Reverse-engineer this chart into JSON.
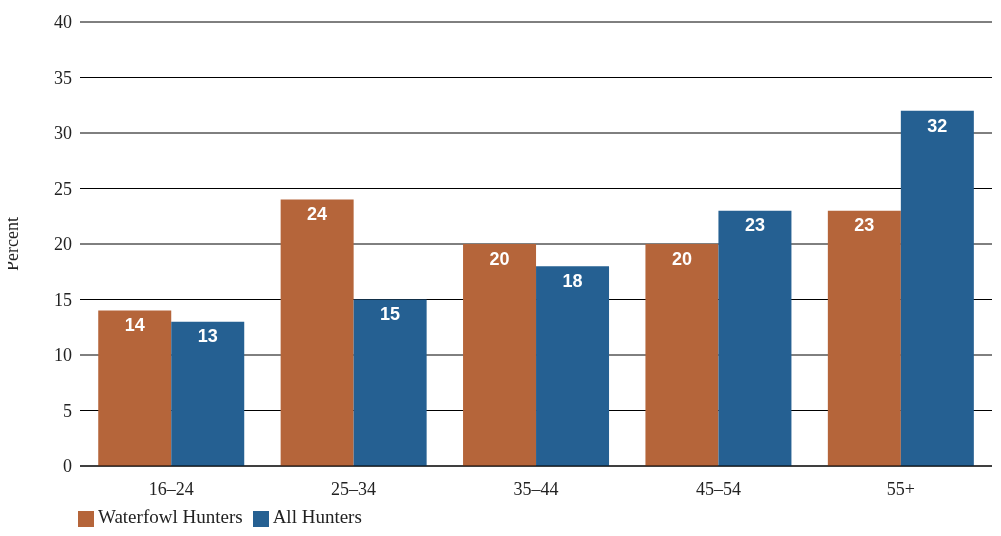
{
  "chart_data": {
    "type": "bar",
    "categories": [
      "16–24",
      "25–34",
      "35–44",
      "45–54",
      "55+"
    ],
    "series": [
      {
        "name": "Waterfowl Hunters",
        "color": "#b5653a",
        "values": [
          14,
          24,
          20,
          20,
          23
        ]
      },
      {
        "name": "All Hunters",
        "color": "#256092",
        "values": [
          13,
          15,
          18,
          23,
          32
        ]
      }
    ],
    "ylabel": "Percent",
    "ylim": [
      0,
      40
    ],
    "yticks": [
      0,
      5,
      10,
      15,
      20,
      25,
      30,
      35,
      40
    ],
    "grid": "y",
    "legend": "bottom left",
    "data_labels": true
  }
}
